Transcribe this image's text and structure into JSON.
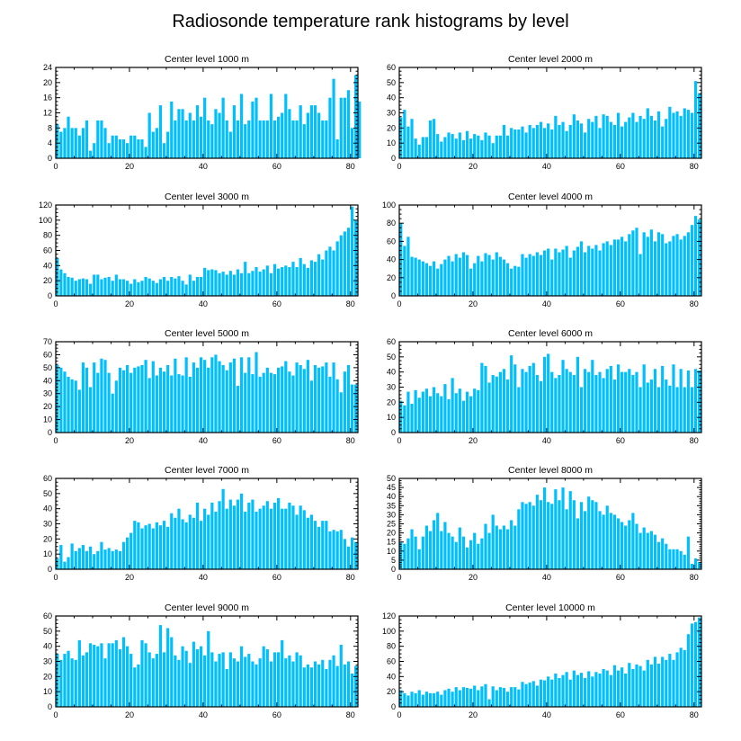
{
  "figure_title": "Radiosonde temperature rank histograms by level",
  "colors": {
    "bar": "#00bfff",
    "axis": "#000000",
    "background": "#ffffff"
  },
  "chart_data": [
    {
      "type": "bar",
      "title": "Center level 1000 m",
      "xlim": [
        0,
        82
      ],
      "ylim": [
        0,
        24
      ],
      "xticks": [
        0,
        20,
        40,
        60,
        80
      ],
      "yticks": [
        0,
        4,
        8,
        12,
        16,
        20,
        24
      ],
      "values": [
        9,
        7,
        8,
        11,
        8,
        8,
        6,
        8,
        10,
        2,
        4,
        10,
        10,
        8,
        4,
        6,
        6,
        5,
        5,
        4,
        6,
        6,
        5,
        5,
        3,
        12,
        7,
        8,
        14,
        4,
        7,
        15,
        10,
        13,
        13,
        10,
        12,
        10,
        14,
        11,
        16,
        10,
        9,
        13,
        12,
        16,
        10,
        7,
        14,
        10,
        17,
        9,
        10,
        15,
        16,
        10,
        10,
        10,
        17,
        10,
        11,
        12,
        17,
        13,
        10,
        10,
        14,
        9,
        12,
        14,
        14,
        12,
        10,
        10,
        16,
        21,
        5,
        16,
        16,
        18,
        8,
        22,
        15
      ]
    },
    {
      "type": "bar",
      "title": "Center level 2000 m",
      "xlim": [
        0,
        82
      ],
      "ylim": [
        0,
        60
      ],
      "xticks": [
        0,
        20,
        40,
        60,
        80
      ],
      "yticks": [
        0,
        10,
        20,
        30,
        40,
        50,
        60
      ],
      "values": [
        27,
        32,
        21,
        26,
        13,
        9,
        14,
        14,
        25,
        26,
        16,
        11,
        14,
        17,
        16,
        13,
        17,
        12,
        18,
        13,
        16,
        15,
        12,
        17,
        15,
        10,
        15,
        15,
        22,
        15,
        20,
        19,
        19,
        21,
        17,
        22,
        20,
        22,
        24,
        20,
        23,
        19,
        28,
        22,
        24,
        18,
        22,
        29,
        25,
        23,
        17,
        26,
        24,
        28,
        20,
        29,
        28,
        24,
        22,
        30,
        21,
        24,
        27,
        30,
        24,
        28,
        26,
        33,
        28,
        25,
        31,
        21,
        26,
        34,
        30,
        31,
        28,
        33,
        32,
        30,
        51,
        43
      ]
    },
    {
      "type": "bar",
      "title": "Center level 3000 m",
      "xlim": [
        0,
        82
      ],
      "ylim": [
        0,
        120
      ],
      "xticks": [
        0,
        20,
        40,
        60,
        80
      ],
      "yticks": [
        0,
        20,
        40,
        60,
        80,
        100,
        120
      ],
      "values": [
        50,
        35,
        30,
        25,
        24,
        20,
        22,
        23,
        22,
        16,
        28,
        28,
        22,
        24,
        25,
        20,
        28,
        22,
        22,
        20,
        16,
        22,
        18,
        20,
        25,
        23,
        20,
        17,
        22,
        25,
        20,
        25,
        23,
        26,
        20,
        15,
        28,
        20,
        25,
        25,
        37,
        34,
        35,
        34,
        30,
        32,
        28,
        33,
        28,
        35,
        30,
        45,
        30,
        33,
        38,
        32,
        35,
        40,
        30,
        42,
        36,
        38,
        40,
        38,
        45,
        38,
        50,
        42,
        37,
        47,
        45,
        55,
        48,
        60,
        65,
        60,
        72,
        80,
        85,
        90,
        118,
        100
      ]
    },
    {
      "type": "bar",
      "title": "Center level 4000 m",
      "xlim": [
        0,
        82
      ],
      "ylim": [
        0,
        100
      ],
      "xticks": [
        0,
        20,
        40,
        60,
        80
      ],
      "yticks": [
        0,
        20,
        40,
        60,
        80,
        100
      ],
      "values": [
        80,
        55,
        65,
        43,
        42,
        40,
        38,
        36,
        33,
        38,
        30,
        35,
        40,
        44,
        38,
        46,
        42,
        48,
        45,
        30,
        36,
        44,
        38,
        47,
        45,
        40,
        48,
        43,
        40,
        36,
        30,
        33,
        32,
        46,
        42,
        46,
        44,
        48,
        45,
        50,
        52,
        40,
        52,
        48,
        51,
        55,
        42,
        50,
        54,
        60,
        48,
        55,
        52,
        56,
        50,
        58,
        60,
        56,
        62,
        62,
        65,
        60,
        68,
        72,
        75,
        46,
        70,
        65,
        73,
        60,
        70,
        68,
        58,
        60,
        66,
        68,
        62,
        66,
        70,
        78,
        88,
        84
      ]
    },
    {
      "type": "bar",
      "title": "Center level 5000 m",
      "xlim": [
        0,
        82
      ],
      "ylim": [
        0,
        70
      ],
      "xticks": [
        0,
        20,
        40,
        60,
        80
      ],
      "yticks": [
        0,
        10,
        20,
        30,
        40,
        50,
        60,
        70
      ],
      "values": [
        52,
        50,
        47,
        43,
        41,
        40,
        33,
        54,
        50,
        35,
        54,
        46,
        57,
        56,
        46,
        30,
        40,
        50,
        48,
        52,
        46,
        50,
        51,
        52,
        56,
        42,
        55,
        44,
        50,
        47,
        52,
        44,
        57,
        45,
        44,
        58,
        43,
        54,
        50,
        58,
        56,
        50,
        58,
        60,
        55,
        52,
        48,
        54,
        57,
        36,
        58,
        46,
        58,
        45,
        62,
        43,
        46,
        50,
        46,
        45,
        50,
        51,
        55,
        47,
        44,
        54,
        52,
        49,
        56,
        40,
        52,
        50,
        51,
        54,
        43,
        54,
        41,
        31,
        47,
        52,
        37,
        37
      ]
    },
    {
      "type": "bar",
      "title": "Center level 6000 m",
      "xlim": [
        0,
        82
      ],
      "ylim": [
        0,
        60
      ],
      "xticks": [
        0,
        20,
        40,
        60,
        80
      ],
      "yticks": [
        0,
        10,
        20,
        30,
        40,
        50,
        60
      ],
      "values": [
        21,
        18,
        27,
        19,
        28,
        23,
        27,
        29,
        24,
        30,
        26,
        24,
        32,
        22,
        36,
        26,
        29,
        21,
        27,
        24,
        29,
        28,
        46,
        44,
        33,
        38,
        37,
        40,
        42,
        35,
        51,
        45,
        30,
        42,
        40,
        44,
        46,
        38,
        34,
        50,
        52,
        40,
        36,
        38,
        48,
        42,
        40,
        38,
        50,
        30,
        42,
        40,
        48,
        38,
        40,
        36,
        42,
        44,
        35,
        45,
        40,
        40,
        42,
        38,
        40,
        30,
        45,
        33,
        35,
        42,
        30,
        44,
        35,
        31,
        45,
        30,
        42,
        30,
        41,
        30,
        42,
        41
      ]
    },
    {
      "type": "bar",
      "title": "Center level 7000 m",
      "xlim": [
        0,
        82
      ],
      "ylim": [
        0,
        60
      ],
      "xticks": [
        0,
        20,
        40,
        60,
        80
      ],
      "yticks": [
        0,
        10,
        20,
        30,
        40,
        50,
        60
      ],
      "values": [
        7,
        16,
        5,
        8,
        17,
        12,
        14,
        16,
        12,
        15,
        10,
        12,
        18,
        13,
        14,
        12,
        13,
        12,
        18,
        21,
        24,
        32,
        31,
        27,
        29,
        30,
        27,
        31,
        29,
        32,
        28,
        37,
        34,
        40,
        33,
        31,
        36,
        34,
        44,
        32,
        40,
        36,
        44,
        38,
        45,
        53,
        40,
        46,
        42,
        46,
        50,
        38,
        44,
        46,
        38,
        40,
        42,
        45,
        40,
        44,
        47,
        40,
        40,
        44,
        42,
        36,
        42,
        39,
        34,
        36,
        32,
        28,
        32,
        32,
        25,
        26,
        25,
        26,
        20,
        15,
        21,
        18
      ]
    },
    {
      "type": "bar",
      "title": "Center level 8000 m",
      "xlim": [
        0,
        82
      ],
      "ylim": [
        0,
        50
      ],
      "xticks": [
        0,
        20,
        40,
        60,
        80
      ],
      "yticks": [
        0,
        5,
        10,
        15,
        20,
        25,
        30,
        35,
        40,
        45,
        50
      ],
      "values": [
        15,
        14,
        17,
        22,
        18,
        11,
        18,
        24,
        21,
        27,
        31,
        21,
        26,
        20,
        18,
        15,
        23,
        18,
        12,
        16,
        20,
        14,
        17,
        25,
        20,
        30,
        24,
        22,
        24,
        22,
        27,
        24,
        33,
        37,
        36,
        37,
        35,
        41,
        38,
        45,
        37,
        36,
        44,
        38,
        45,
        33,
        43,
        38,
        28,
        37,
        32,
        40,
        38,
        37,
        32,
        30,
        35,
        31,
        30,
        28,
        26,
        24,
        27,
        31,
        25,
        20,
        23,
        20,
        21,
        19,
        15,
        17,
        14,
        11,
        11,
        11,
        10,
        8,
        18,
        3,
        6,
        4
      ]
    },
    {
      "type": "bar",
      "title": "Center level 9000 m",
      "xlim": [
        0,
        82
      ],
      "ylim": [
        0,
        60
      ],
      "xticks": [
        0,
        20,
        40,
        60,
        80
      ],
      "yticks": [
        0,
        10,
        20,
        30,
        40,
        50,
        60
      ],
      "values": [
        35,
        31,
        35,
        37,
        32,
        31,
        44,
        34,
        36,
        42,
        41,
        40,
        42,
        32,
        42,
        42,
        44,
        38,
        46,
        40,
        35,
        26,
        28,
        44,
        42,
        36,
        32,
        35,
        54,
        36,
        52,
        46,
        34,
        31,
        40,
        37,
        29,
        43,
        38,
        40,
        34,
        50,
        36,
        30,
        35,
        36,
        25,
        36,
        32,
        30,
        40,
        33,
        35,
        30,
        28,
        32,
        40,
        38,
        30,
        36,
        36,
        44,
        32,
        34,
        30,
        36,
        34,
        26,
        28,
        26,
        30,
        28,
        31,
        25,
        31,
        34,
        27,
        41,
        28,
        30,
        22,
        27
      ]
    },
    {
      "type": "bar",
      "title": "Center level 10000 m",
      "xlim": [
        0,
        82
      ],
      "ylim": [
        0,
        120
      ],
      "xticks": [
        0,
        20,
        40,
        60,
        80
      ],
      "yticks": [
        0,
        20,
        40,
        60,
        80,
        100,
        120
      ],
      "values": [
        22,
        18,
        15,
        20,
        18,
        22,
        16,
        20,
        18,
        18,
        20,
        16,
        22,
        24,
        20,
        26,
        22,
        26,
        25,
        24,
        28,
        22,
        27,
        30,
        10,
        27,
        22,
        26,
        25,
        20,
        26,
        26,
        23,
        33,
        30,
        32,
        34,
        28,
        36,
        35,
        40,
        36,
        44,
        38,
        42,
        46,
        36,
        48,
        42,
        45,
        38,
        47,
        40,
        46,
        44,
        50,
        48,
        42,
        55,
        48,
        52,
        44,
        58,
        50,
        56,
        54,
        48,
        62,
        56,
        66,
        57,
        66,
        62,
        70,
        62,
        72,
        78,
        75,
        96,
        110,
        112,
        118
      ]
    }
  ]
}
